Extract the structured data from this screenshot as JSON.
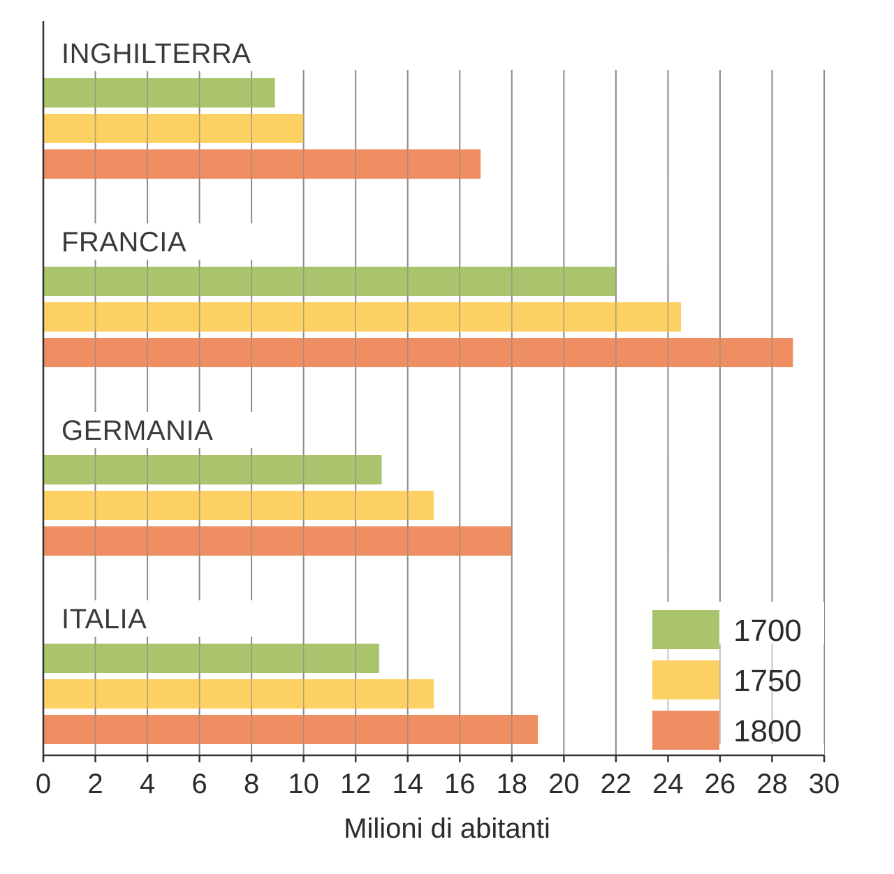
{
  "chart_data": {
    "type": "bar",
    "orientation": "horizontal",
    "categories": [
      "INGHILTERRA",
      "FRANCIA",
      "GERMANIA",
      "ITALIA"
    ],
    "series": [
      {
        "name": "1700",
        "color": "#a9c46d",
        "values": [
          8.9,
          22.0,
          13.0,
          12.9
        ]
      },
      {
        "name": "1750",
        "color": "#fdd064",
        "values": [
          10.0,
          24.5,
          15.0,
          15.0
        ]
      },
      {
        "name": "1800",
        "color": "#ef8e62",
        "values": [
          16.8,
          28.8,
          18.0,
          19.0
        ]
      }
    ],
    "xlabel": "Milioni di abitanti",
    "xlim": [
      0,
      30
    ],
    "xticks": [
      "0",
      "2",
      "4",
      "6",
      "8",
      "10",
      "12",
      "14",
      "16",
      "18",
      "20",
      "22",
      "24",
      "26",
      "28",
      "30"
    ],
    "grid": true,
    "legend": "bottom-right"
  }
}
